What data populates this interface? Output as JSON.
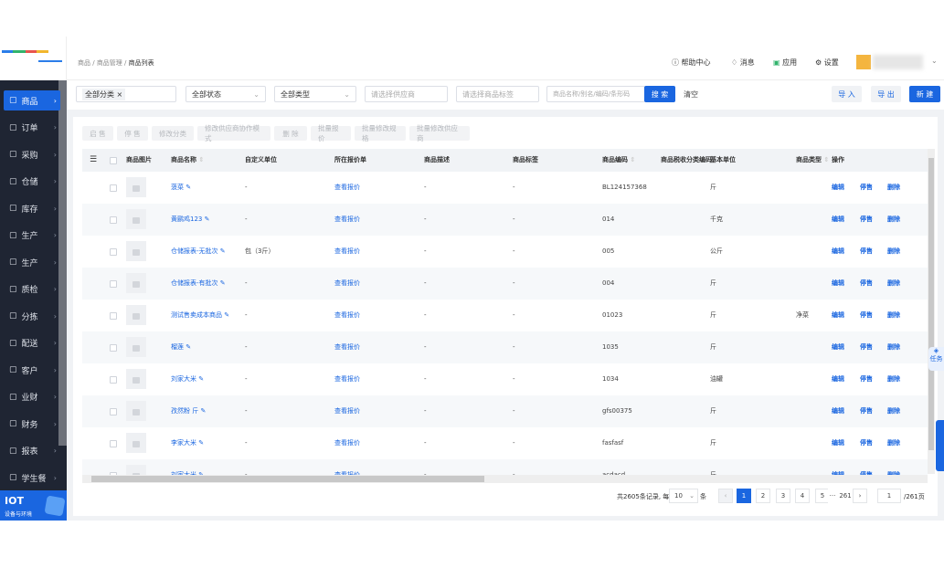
{
  "sidebar": {
    "items": [
      {
        "label": "商品",
        "icon": "grid-icon"
      },
      {
        "label": "订单",
        "icon": "clipboard-icon"
      },
      {
        "label": "采购",
        "icon": "basket-icon"
      },
      {
        "label": "仓储",
        "icon": "warehouse-icon"
      },
      {
        "label": "库存",
        "icon": "inventory-icon"
      },
      {
        "label": "生产",
        "icon": "factory-icon"
      },
      {
        "label": "生产",
        "icon": "factory-icon"
      },
      {
        "label": "质检",
        "icon": "shield-icon"
      },
      {
        "label": "分拣",
        "icon": "sort-icon"
      },
      {
        "label": "配送",
        "icon": "truck-icon"
      },
      {
        "label": "客户",
        "icon": "user-icon"
      },
      {
        "label": "业财",
        "icon": "chart-icon"
      },
      {
        "label": "财务",
        "icon": "wallet-icon"
      },
      {
        "label": "报表",
        "icon": "clock-icon"
      },
      {
        "label": "学生餐",
        "icon": "dish-icon"
      }
    ],
    "iot": {
      "title": "IOT",
      "subtitle": "设备与环境"
    }
  },
  "breadcrumb": [
    "商品",
    "商品管理",
    "商品列表"
  ],
  "header": {
    "help": "帮助中心",
    "messages": "消息",
    "apps": "应用",
    "settings": "设置"
  },
  "filters": {
    "category_tag": "全部分类",
    "status": "全部状态",
    "type": "全部类型",
    "supplier_placeholder": "请选择供应商",
    "tag_placeholder": "请选择商品标签",
    "search_placeholder": "商品名称/别名/编码/条形码",
    "search": "搜 索",
    "clear": "清空",
    "import": "导 入",
    "export": "导 出",
    "create": "新 建"
  },
  "toolbar": [
    "启 售",
    "停 售",
    "修改分类",
    "修改供应商协作模式",
    "删 除",
    "批量报价",
    "批量修改规格",
    "批量修改供应商"
  ],
  "table": {
    "headers": [
      "商品图片",
      "商品名称",
      "自定义单位",
      "所在报价单",
      "商品描述",
      "商品标签",
      "商品编码",
      "商品税收分类编码",
      "基本单位",
      "商品类型",
      "操作"
    ],
    "rows": [
      {
        "name": "菠菜",
        "unit": "-",
        "quote": "查看报价",
        "desc": "-",
        "tag": "-",
        "code": "BL124157368",
        "base": "斤",
        "type": ""
      },
      {
        "name": "黄鹂鸡123",
        "unit": "-",
        "quote": "查看报价",
        "desc": "-",
        "tag": "-",
        "code": "014",
        "base": "千克",
        "type": ""
      },
      {
        "name": "仓储报表-无批次",
        "unit": "包（3斤）",
        "quote": "查看报价",
        "desc": "-",
        "tag": "-",
        "code": "005",
        "base": "公斤",
        "type": ""
      },
      {
        "name": "仓储报表-有批次",
        "unit": "-",
        "quote": "查看报价",
        "desc": "-",
        "tag": "-",
        "code": "004",
        "base": "斤",
        "type": ""
      },
      {
        "name": "测试售卖成本商品",
        "unit": "-",
        "quote": "查看报价",
        "desc": "-",
        "tag": "-",
        "code": "01023",
        "base": "斤",
        "type": "净菜"
      },
      {
        "name": "榴莲",
        "unit": "-",
        "quote": "查看报价",
        "desc": "-",
        "tag": "-",
        "code": "1035",
        "base": "斤",
        "type": ""
      },
      {
        "name": "刘家大米",
        "unit": "-",
        "quote": "查看报价",
        "desc": "-",
        "tag": "-",
        "code": "1034",
        "base": "油罐",
        "type": ""
      },
      {
        "name": "孜然粉 斤",
        "unit": "-",
        "quote": "查看报价",
        "desc": "-",
        "tag": "-",
        "code": "gfs00375",
        "base": "斤",
        "type": ""
      },
      {
        "name": "李家大米",
        "unit": "-",
        "quote": "查看报价",
        "desc": "-",
        "tag": "-",
        "code": "fasfasf",
        "base": "斤",
        "type": ""
      },
      {
        "name": "刘家大米",
        "unit": "-",
        "quote": "查看报价",
        "desc": "-",
        "tag": "-",
        "code": "acdacd",
        "base": "斤",
        "type": ""
      }
    ],
    "actions": [
      "编辑",
      "停售",
      "删除"
    ]
  },
  "pagination": {
    "total_text": "共2605条记录, 每页",
    "page_size": "10",
    "unit": "条",
    "pages": [
      "1",
      "2",
      "3",
      "4",
      "5",
      "···",
      "261"
    ],
    "current": "1",
    "jump_value": "1",
    "total_pages": "/261页"
  },
  "floating": {
    "task": "任务"
  },
  "colors": {
    "primary": "#1a66e0",
    "sidebar": "#1f2533"
  }
}
